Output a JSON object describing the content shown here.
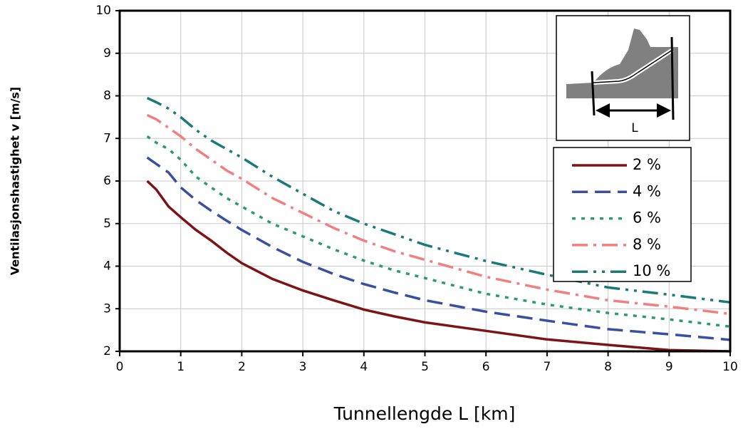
{
  "chart_data": {
    "type": "line",
    "x_label": "Tunnellengde L [km]",
    "y_label": "Ventilasjonshastighet v [m/s]",
    "inset_label": "L",
    "x": [
      0.45,
      0.6,
      0.8,
      1,
      1.25,
      1.5,
      1.75,
      2,
      2.5,
      3,
      3.5,
      4,
      4.5,
      5,
      6,
      7,
      8,
      9,
      10
    ],
    "series": [
      {
        "name": "2 %",
        "color": "#7b1416",
        "values": [
          6.0,
          5.8,
          5.4,
          5.15,
          4.85,
          4.6,
          4.32,
          4.07,
          3.7,
          3.43,
          3.2,
          2.98,
          2.82,
          2.68,
          2.48,
          2.28,
          2.15,
          2.03,
          2.0
        ]
      },
      {
        "name": "4 %",
        "color": "#3b4fa0",
        "values": [
          6.55,
          6.4,
          6.2,
          5.85,
          5.55,
          5.3,
          5.07,
          4.85,
          4.45,
          4.1,
          3.82,
          3.58,
          3.38,
          3.2,
          2.93,
          2.72,
          2.52,
          2.4,
          2.27
        ]
      },
      {
        "name": "6 %",
        "color": "#2e9a6e",
        "values": [
          7.05,
          6.9,
          6.75,
          6.5,
          6.1,
          5.85,
          5.6,
          5.4,
          5.0,
          4.7,
          4.4,
          4.13,
          3.9,
          3.72,
          3.35,
          3.1,
          2.9,
          2.75,
          2.58
        ]
      },
      {
        "name": "8 %",
        "color": "#f08080",
        "values": [
          7.55,
          7.45,
          7.25,
          7.05,
          6.75,
          6.5,
          6.25,
          6.05,
          5.6,
          5.25,
          4.9,
          4.6,
          4.35,
          4.15,
          3.75,
          3.45,
          3.2,
          3.05,
          2.88
        ]
      },
      {
        "name": "10 %",
        "color": "#1a7a78",
        "values": [
          7.95,
          7.85,
          7.7,
          7.5,
          7.2,
          6.95,
          6.75,
          6.55,
          6.1,
          5.7,
          5.3,
          5.0,
          4.75,
          4.5,
          4.12,
          3.8,
          3.5,
          3.33,
          3.15
        ]
      }
    ],
    "xlim": [
      0,
      10
    ],
    "xticks": [
      0,
      1,
      2,
      3,
      4,
      5,
      6,
      7,
      8,
      9,
      10
    ],
    "ylim": [
      2,
      10
    ],
    "yticks": [
      2,
      3,
      4,
      5,
      6,
      7,
      8,
      9,
      10
    ],
    "grid": true
  }
}
